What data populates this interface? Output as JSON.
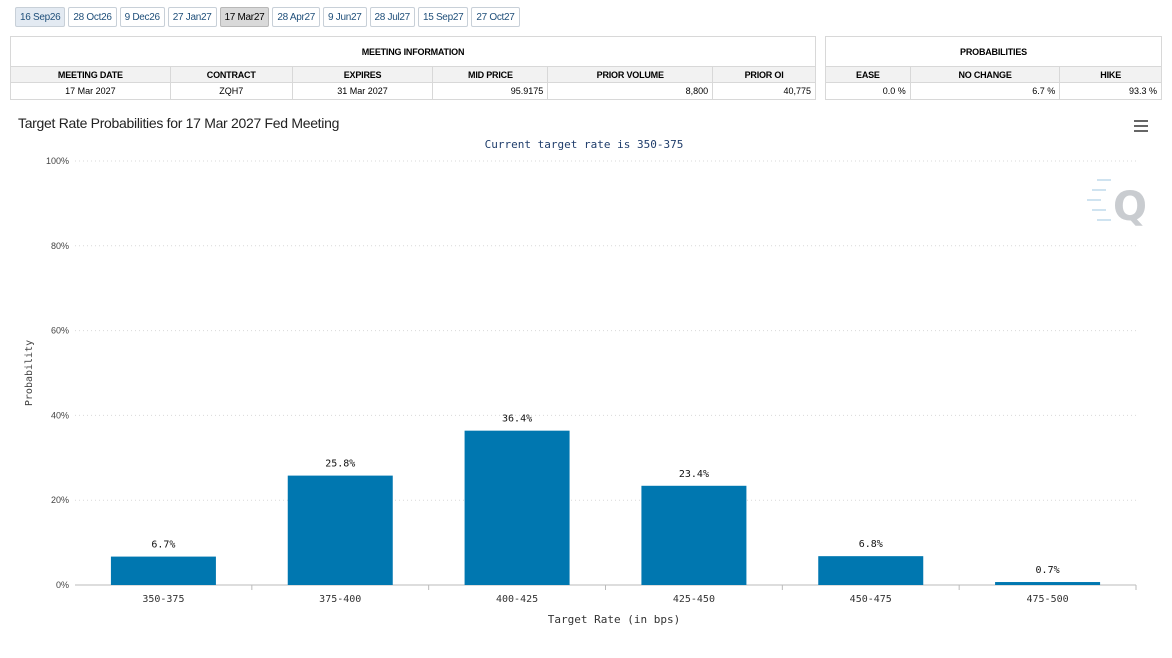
{
  "tabs": [
    "16 Sep26",
    "28 Oct26",
    "9 Dec26",
    "27 Jan27",
    "17 Mar27",
    "28 Apr27",
    "9 Jun27",
    "28 Jul27",
    "15 Sep27",
    "27 Oct27"
  ],
  "active_tab": "17 Mar27",
  "meeting_info": {
    "header": "MEETING INFORMATION",
    "columns": [
      "MEETING DATE",
      "CONTRACT",
      "EXPIRES",
      "MID PRICE",
      "PRIOR VOLUME",
      "PRIOR OI"
    ],
    "row": [
      "17 Mar 2027",
      "ZQH7",
      "31 Mar 2027",
      "95.9175",
      "8,800",
      "40,775"
    ]
  },
  "probabilities": {
    "header": "PROBABILITIES",
    "columns": [
      "EASE",
      "NO CHANGE",
      "HIKE"
    ],
    "row": [
      "0.0 %",
      "6.7 %",
      "93.3 %"
    ]
  },
  "colors": {
    "bar": "#0077b0",
    "accent": "#1f4f7a"
  },
  "chart_data": {
    "type": "bar",
    "title": "Target Rate Probabilities for 17 Mar 2027 Fed Meeting",
    "subtitle": "Current target rate is 350-375",
    "xlabel": "Target Rate (in bps)",
    "ylabel": "Probability",
    "categories": [
      "350-375",
      "375-400",
      "400-425",
      "425-450",
      "450-475",
      "475-500"
    ],
    "values": [
      6.7,
      25.8,
      36.4,
      23.4,
      6.8,
      0.7
    ],
    "data_labels": [
      "6.7%",
      "25.8%",
      "36.4%",
      "23.4%",
      "6.8%",
      "0.7%"
    ],
    "ylim": [
      0,
      100
    ],
    "yticks": [
      "0%",
      "20%",
      "40%",
      "60%",
      "80%",
      "100%"
    ],
    "grid": true
  }
}
